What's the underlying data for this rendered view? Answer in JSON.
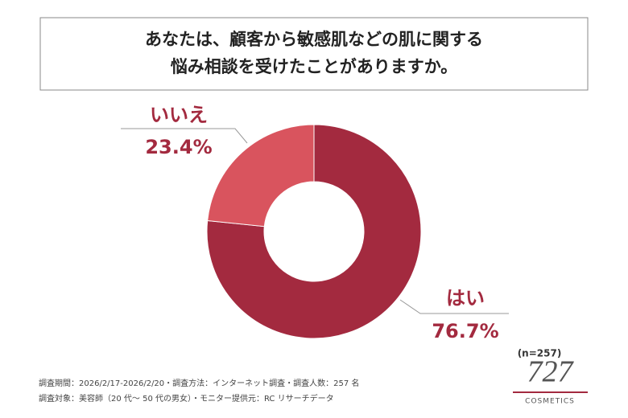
{
  "chart_data": {
    "type": "donut",
    "title": [
      "あなたは、顧客から敏感肌などの肌に関する",
      "悩み相談を受けたことがありますか。"
    ],
    "categories": [
      "はい",
      "いいえ"
    ],
    "values": [
      76.7,
      23.4
    ],
    "value_labels": [
      "76.7%",
      "23.4%"
    ],
    "colors": [
      "#a32a3f",
      "#d9545e"
    ],
    "note": "(n=257)",
    "footnotes": [
      "調査期間：2026/2/17-2026/2/20・調査方法：インターネット調査・調査人数：257 名",
      "調査対象：美容師（20 代〜 50 代の男女）・モニター提供元：RC リサーチデータ"
    ],
    "logo": {
      "number": "727",
      "brand": "COSMETICS"
    }
  }
}
